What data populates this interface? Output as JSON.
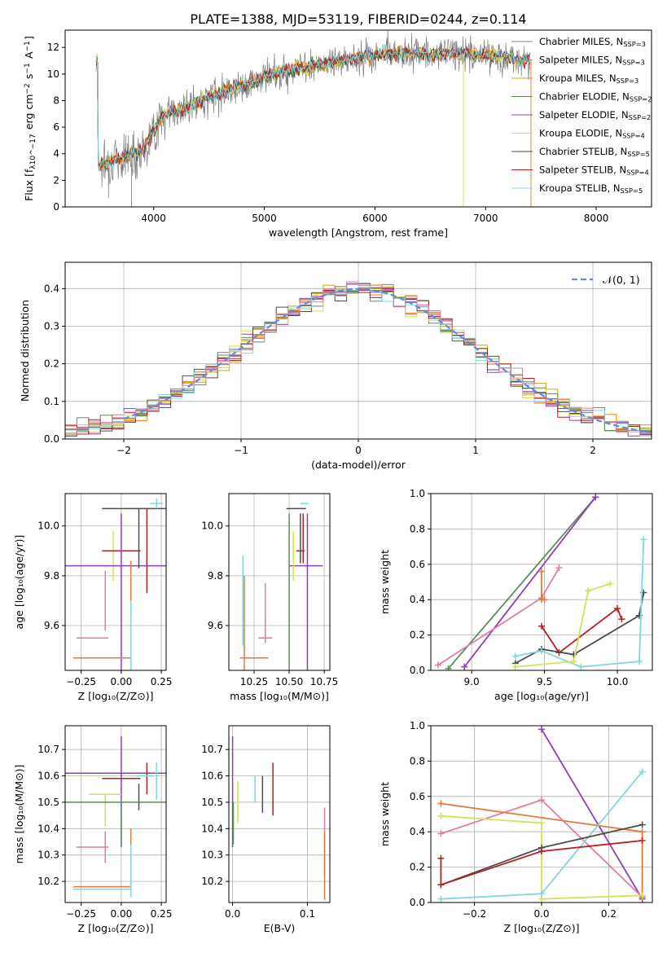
{
  "figure": {
    "title": "PLATE=1388, MJD=53119, FIBERID=0244, z=0.114"
  },
  "palette": {
    "Chabrier MILES": "#7f7f7f",
    "Salpeter MILES": "#ff7f0e",
    "Kroupa MILES": "#d4a017",
    "Chabrier ELODIE": "#5b8c5a",
    "Salpeter ELODIE": "#8e3fb3",
    "Kroupa ELODIE": "#d4e157",
    "Chabrier STELIB": "#4d4d4d",
    "Salpeter STELIB": "#b22222",
    "Kroupa STELIB": "#7fd8dc",
    "pink": "#e17ca8",
    "orange": "#e07b39",
    "gaussian": "#5b8ee0"
  },
  "chart_data": [
    {
      "id": "spectrum",
      "type": "line",
      "xlabel": "wavelength [Angstrom, rest frame]",
      "ylabel": "Flux [f_λ10^-17 erg cm^-2 s^-1 A^-1]",
      "xlim": [
        3200,
        8500
      ],
      "ylim": [
        0,
        13.3
      ],
      "xticks": [
        4000,
        5000,
        6000,
        7000,
        8000
      ],
      "yticks": [
        0,
        2,
        4,
        6,
        8,
        10,
        12
      ],
      "legend_position": "right",
      "legend": [
        {
          "name": "Chabrier MILES, N_SSP=3"
        },
        {
          "name": "Salpeter MILES, N_SSP=3"
        },
        {
          "name": "Kroupa MILES, N_SSP=3"
        },
        {
          "name": "Chabrier ELODIE, N_SSP=2"
        },
        {
          "name": "Salpeter ELODIE, N_SSP=2"
        },
        {
          "name": "Kroupa ELODIE, N_SSP=4"
        },
        {
          "name": "Chabrier STELIB, N_SSP=5"
        },
        {
          "name": "Salpeter STELIB, N_SSP=4"
        },
        {
          "name": "Kroupa STELIB, N_SSP=5"
        }
      ],
      "continuum": [
        [
          3500,
          3.1
        ],
        [
          3700,
          3.6
        ],
        [
          3900,
          4.3
        ],
        [
          4100,
          7.0
        ],
        [
          4300,
          7.4
        ],
        [
          4500,
          8.3
        ],
        [
          4700,
          8.9
        ],
        [
          4900,
          9.4
        ],
        [
          5100,
          10.1
        ],
        [
          5300,
          10.4
        ],
        [
          5500,
          10.7
        ],
        [
          5700,
          11.0
        ],
        [
          5900,
          11.3
        ],
        [
          6100,
          11.5
        ],
        [
          6300,
          11.6
        ],
        [
          6500,
          11.5
        ],
        [
          6700,
          11.6
        ],
        [
          6900,
          11.4
        ],
        [
          7100,
          11.4
        ],
        [
          7300,
          11.0
        ],
        [
          7400,
          11.1
        ]
      ]
    },
    {
      "id": "residuals",
      "type": "histogram",
      "xlabel": "(data-model)/error",
      "ylabel": "Normed distribution",
      "xlim": [
        -2.5,
        2.5
      ],
      "ylim": [
        0,
        0.47
      ],
      "xticks": [
        -2,
        -1,
        0,
        1,
        2
      ],
      "yticks": [
        0.0,
        0.1,
        0.2,
        0.3,
        0.4
      ],
      "grid": true,
      "legend_position": "top-right",
      "legend": [
        {
          "name": "N(0,1)"
        }
      ],
      "bin_width": 0.1
    },
    {
      "id": "age-vs-Z",
      "type": "errorbar",
      "xlabel": "Z [log10(Z/Z_sun)]",
      "ylabel": "age [log10(age/yr)]",
      "xlim": [
        -0.35,
        0.28
      ],
      "ylim": [
        9.42,
        10.13
      ],
      "xticks": [
        -0.25,
        0.0,
        0.25
      ],
      "yticks": [
        9.6,
        9.8,
        10.0
      ],
      "grid": true,
      "points": [
        {
          "c": "Chabrier STELIB",
          "x": 0.09,
          "xe": 0.21,
          "y": 10.07,
          "ye": 0.0
        },
        {
          "c": "Kroupa STELIB",
          "x": 0.22,
          "xe": 0.04,
          "y": 10.09,
          "ye": 0.02
        },
        {
          "c": "Kroupa ELODIE",
          "x": -0.05,
          "xe": 0.0,
          "y": 9.88,
          "ye": 0.1
        },
        {
          "c": "Salpeter STELIB",
          "x": 0.0,
          "xe": 0.12,
          "y": 9.9,
          "ye": 0.0
        },
        {
          "c": "Salpeter ELODIE",
          "x": -0.05,
          "xe": 0.5,
          "y": 9.84,
          "ye": 0.0
        },
        {
          "c": "Chabrier ELODIE",
          "x": -0.05,
          "xe": 0.0,
          "y": 9.84,
          "ye": 0.0
        },
        {
          "c": "Salpeter ELODIE",
          "x": 0.0,
          "xe": 0.0,
          "y": 9.72,
          "ye": 0.33
        },
        {
          "c": "Salpeter STELIB",
          "x": 0.16,
          "xe": 0.0,
          "y": 9.9,
          "ye": 0.17
        },
        {
          "c": "Chabrier STELIB",
          "x": 0.11,
          "xe": 0.0,
          "y": 9.95,
          "ye": 0.12
        },
        {
          "c": "pink",
          "x": -0.18,
          "xe": 0.1,
          "y": 9.55,
          "ye": 0.0
        },
        {
          "c": "pink",
          "x": -0.1,
          "xe": 0.0,
          "y": 9.7,
          "ye": 0.12
        },
        {
          "c": "orange",
          "x": -0.12,
          "xe": 0.18,
          "y": 9.47,
          "ye": 0.0
        },
        {
          "c": "orange",
          "x": 0.06,
          "xe": 0.0,
          "y": 9.66,
          "ye": 0.2
        },
        {
          "c": "Kroupa STELIB",
          "x": 0.06,
          "xe": 0.0,
          "y": 9.55,
          "ye": 0.15
        }
      ]
    },
    {
      "id": "age-vs-mass",
      "type": "errorbar",
      "xlabel": "mass [log10(M/M_sun)]",
      "ylabel": "",
      "xlim": [
        10.07,
        10.79
      ],
      "ylim": [
        9.42,
        10.13
      ],
      "xticks": [
        10.25,
        10.5,
        10.75
      ],
      "yticks": [
        9.6,
        9.8,
        10.0
      ],
      "grid": true,
      "points": [
        {
          "c": "Kroupa STELIB",
          "x": 10.61,
          "xe": 0.03,
          "y": 10.09,
          "ye": 0.0
        },
        {
          "c": "Chabrier STELIB",
          "x": 10.55,
          "xe": 0.07,
          "y": 10.07,
          "ye": 0.0
        },
        {
          "c": "Salpeter ELODIE",
          "x": 10.62,
          "xe": 0.12,
          "y": 9.84,
          "ye": 0.0
        },
        {
          "c": "Salpeter STELIB",
          "x": 10.58,
          "xe": 0.03,
          "y": 9.9,
          "ye": 0.0
        },
        {
          "c": "Kroupa ELODIE",
          "x": 10.53,
          "xe": 0.0,
          "y": 9.88,
          "ye": 0.1
        },
        {
          "c": "Chabrier ELODIE",
          "x": 10.5,
          "xe": 0.0,
          "y": 9.72,
          "ye": 0.33
        },
        {
          "c": "Salpeter ELODIE",
          "x": 10.63,
          "xe": 0.0,
          "y": 9.72,
          "ye": 0.33
        },
        {
          "c": "Salpeter STELIB",
          "x": 10.6,
          "xe": 0.0,
          "y": 9.95,
          "ye": 0.1
        },
        {
          "c": "Chabrier STELIB",
          "x": 10.58,
          "xe": 0.0,
          "y": 9.95,
          "ye": 0.1
        },
        {
          "c": "pink",
          "x": 10.33,
          "xe": 0.05,
          "y": 9.55,
          "ye": 0.0
        },
        {
          "c": "pink",
          "x": 10.33,
          "xe": 0.0,
          "y": 9.65,
          "ye": 0.12
        },
        {
          "c": "orange",
          "x": 10.25,
          "xe": 0.1,
          "y": 9.47,
          "ye": 0.0
        },
        {
          "c": "Kroupa STELIB",
          "x": 10.17,
          "xe": 0.0,
          "y": 9.7,
          "ye": 0.18
        },
        {
          "c": "orange",
          "x": 10.18,
          "xe": 0.0,
          "y": 9.6,
          "ye": 0.2
        }
      ]
    },
    {
      "id": "weight-vs-age",
      "type": "line",
      "xlabel": "age [log10(age/yr)]",
      "ylabel": "mass weight",
      "xlim": [
        8.72,
        10.24
      ],
      "ylim": [
        0,
        1.0
      ],
      "xticks": [
        9.0,
        9.5,
        10.0
      ],
      "yticks": [
        0.0,
        0.2,
        0.4,
        0.6,
        0.8,
        1.0
      ],
      "grid": true,
      "series": [
        {
          "c": "Chabrier ELODIE",
          "x": [
            8.84,
            9.85
          ],
          "y": [
            0.01,
            0.98
          ]
        },
        {
          "c": "Salpeter ELODIE",
          "x": [
            8.95,
            9.85
          ],
          "y": [
            0.02,
            0.98
          ]
        },
        {
          "c": "pink",
          "x": [
            8.77,
            9.48,
            9.6
          ],
          "y": [
            0.03,
            0.41,
            0.58
          ]
        },
        {
          "c": "orange",
          "x": [
            9.48,
            9.48,
            9.5
          ],
          "y": [
            0.56,
            0.4,
            0.4
          ]
        },
        {
          "c": "Salpeter STELIB",
          "x": [
            9.48,
            9.6,
            10.0,
            10.03
          ],
          "y": [
            0.25,
            0.1,
            0.35,
            0.29
          ]
        },
        {
          "c": "Chabrier STELIB",
          "x": [
            9.3,
            9.48,
            9.7,
            10.15,
            10.18
          ],
          "y": [
            0.04,
            0.12,
            0.09,
            0.31,
            0.44
          ]
        },
        {
          "c": "Kroupa STELIB",
          "x": [
            9.3,
            9.48,
            9.75,
            10.15,
            10.18
          ],
          "y": [
            0.08,
            0.11,
            0.02,
            0.05,
            0.74
          ]
        },
        {
          "c": "Kroupa ELODIE",
          "x": [
            9.3,
            9.7,
            9.8,
            9.95
          ],
          "y": [
            0.02,
            0.05,
            0.45,
            0.49
          ]
        }
      ]
    },
    {
      "id": "mass-vs-Z",
      "type": "errorbar",
      "xlabel": "Z [log10(Z/Z_sun)]",
      "ylabel": "mass [log10(M/M_sun)]",
      "xlim": [
        -0.35,
        0.28
      ],
      "ylim": [
        10.12,
        10.79
      ],
      "xticks": [
        -0.25,
        0.0,
        0.25
      ],
      "yticks": [
        10.2,
        10.3,
        10.4,
        10.5,
        10.6,
        10.7
      ],
      "grid": true,
      "points": [
        {
          "c": "Salpeter ELODIE",
          "x": -0.05,
          "xe": 0.5,
          "y": 10.61,
          "ye": 0.0
        },
        {
          "c": "Salpeter ELODIE",
          "x": 0.0,
          "xe": 0.0,
          "y": 10.54,
          "ye": 0.21
        },
        {
          "c": "Salpeter STELIB",
          "x": 0.0,
          "xe": 0.12,
          "y": 10.59,
          "ye": 0.0
        },
        {
          "c": "Salpeter STELIB",
          "x": 0.16,
          "xe": 0.0,
          "y": 10.59,
          "ye": 0.06
        },
        {
          "c": "Chabrier STELIB",
          "x": 0.11,
          "xe": 0.0,
          "y": 10.52,
          "ye": 0.05
        },
        {
          "c": "Kroupa STELIB",
          "x": 0.22,
          "xe": 0.0,
          "y": 10.58,
          "ye": 0.07
        },
        {
          "c": "Kroupa STELIB",
          "x": 0.15,
          "xe": 0.05,
          "y": 10.6,
          "ye": 0.0
        },
        {
          "c": "Kroupa ELODIE",
          "x": -0.1,
          "xe": 0.1,
          "y": 10.53,
          "ye": 0.0
        },
        {
          "c": "Kroupa ELODIE",
          "x": -0.1,
          "xe": 0.0,
          "y": 10.47,
          "ye": 0.06
        },
        {
          "c": "Chabrier ELODIE",
          "x": -0.05,
          "xe": 0.5,
          "y": 10.5,
          "ye": 0.0
        },
        {
          "c": "Chabrier ELODIE",
          "x": 0.0,
          "xe": 0.0,
          "y": 10.42,
          "ye": 0.08
        },
        {
          "c": "pink",
          "x": -0.18,
          "xe": 0.1,
          "y": 10.33,
          "ye": 0.0
        },
        {
          "c": "pink",
          "x": -0.1,
          "xe": 0.0,
          "y": 10.33,
          "ye": 0.06
        },
        {
          "c": "orange",
          "x": -0.12,
          "xe": 0.18,
          "y": 10.18,
          "ye": 0.0
        },
        {
          "c": "orange",
          "x": 0.06,
          "xe": 0.0,
          "y": 10.28,
          "ye": 0.12
        },
        {
          "c": "Kroupa STELIB",
          "x": -0.12,
          "xe": 0.18,
          "y": 10.17,
          "ye": 0.0
        },
        {
          "c": "Kroupa STELIB",
          "x": 0.06,
          "xe": 0.0,
          "y": 10.24,
          "ye": 0.1
        }
      ]
    },
    {
      "id": "mass-vs-EBV",
      "type": "errorbar",
      "xlabel": "E(B-V)",
      "ylabel": "",
      "xlim": [
        -0.005,
        0.13
      ],
      "ylim": [
        10.12,
        10.79
      ],
      "xticks": [
        0.0,
        0.1
      ],
      "yticks": [
        10.2,
        10.3,
        10.4,
        10.5,
        10.6,
        10.7
      ],
      "grid": true,
      "points": [
        {
          "c": "Salpeter ELODIE",
          "x": 0.0,
          "xe": 0.0,
          "y": 10.54,
          "ye": 0.21
        },
        {
          "c": "Chabrier ELODIE",
          "x": 0.001,
          "xe": 0.0,
          "y": 10.42,
          "ye": 0.08
        },
        {
          "c": "Kroupa ELODIE",
          "x": 0.007,
          "xe": 0.0,
          "y": 10.5,
          "ye": 0.08
        },
        {
          "c": "Kroupa STELIB",
          "x": 0.03,
          "xe": 0.0,
          "y": 10.55,
          "ye": 0.05
        },
        {
          "c": "Chabrier STELIB",
          "x": 0.04,
          "xe": 0.0,
          "y": 10.53,
          "ye": 0.07
        },
        {
          "c": "Salpeter STELIB",
          "x": 0.054,
          "xe": 0.0,
          "y": 10.55,
          "ye": 0.1
        },
        {
          "c": "pink",
          "x": 0.123,
          "xe": 0.0,
          "y": 10.35,
          "ye": 0.13
        },
        {
          "c": "orange",
          "x": 0.123,
          "xe": 0.0,
          "y": 10.26,
          "ye": 0.13
        }
      ]
    },
    {
      "id": "weight-vs-Z",
      "type": "line",
      "xlabel": "Z [log10(Z/Z_sun)]",
      "ylabel": "mass weight",
      "xlim": [
        -0.33,
        0.33
      ],
      "ylim": [
        0,
        1.0
      ],
      "xticks": [
        -0.2,
        0.0,
        0.2
      ],
      "yticks": [
        0.0,
        0.2,
        0.4,
        0.6,
        0.8,
        1.0
      ],
      "grid": true,
      "series": [
        {
          "c": "Salpeter ELODIE",
          "x": [
            0.0,
            0.3
          ],
          "y": [
            0.98,
            0.02
          ]
        },
        {
          "c": "pink",
          "x": [
            -0.3,
            0.0,
            0.3
          ],
          "y": [
            0.39,
            0.58,
            0.03
          ]
        },
        {
          "c": "orange",
          "x": [
            -0.3,
            0.3,
            0.3
          ],
          "y": [
            0.56,
            0.4,
            0.03
          ]
        },
        {
          "c": "Kroupa ELODIE",
          "x": [
            -0.3,
            0.0,
            0.0,
            0.3
          ],
          "y": [
            0.49,
            0.45,
            0.02,
            0.04
          ]
        },
        {
          "c": "Kroupa STELIB",
          "x": [
            -0.3,
            0.0,
            0.3
          ],
          "y": [
            0.02,
            0.05,
            0.74
          ]
        },
        {
          "c": "Chabrier STELIB",
          "x": [
            -0.3,
            0.0,
            0.3
          ],
          "y": [
            0.1,
            0.31,
            0.44
          ]
        },
        {
          "c": "Salpeter STELIB",
          "x": [
            -0.3,
            -0.3,
            0.0,
            0.3
          ],
          "y": [
            0.25,
            0.1,
            0.29,
            0.35
          ]
        }
      ]
    }
  ]
}
